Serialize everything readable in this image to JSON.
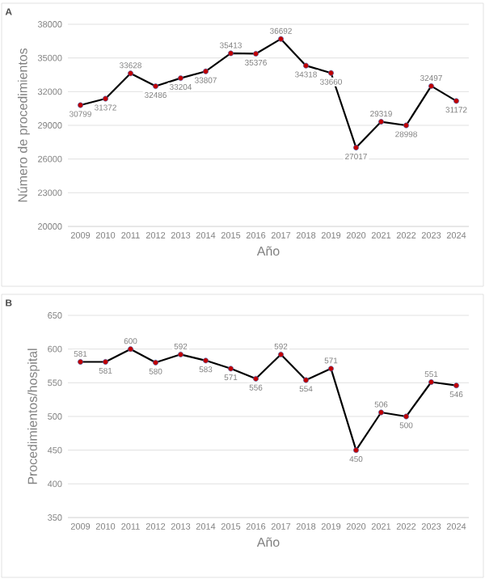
{
  "chart_data": [
    {
      "type": "line",
      "title": "A",
      "xlabel": "Año",
      "ylabel": "Número de procedimientos",
      "categories": [
        "2009",
        "2010",
        "2011",
        "2012",
        "2013",
        "2014",
        "2015",
        "2016",
        "2017",
        "2018",
        "2019",
        "2020",
        "2021",
        "2022",
        "2023",
        "2024"
      ],
      "series": [
        {
          "color": "#000000",
          "values": [
            30799,
            31372,
            33628,
            32486,
            33204,
            33807,
            35413,
            35376,
            36692,
            34318,
            33660,
            27017,
            29319,
            28998,
            32497,
            31172
          ]
        }
      ],
      "ylim": [
        20000,
        38000
      ],
      "yticks": [
        20000,
        23000,
        26000,
        29000,
        32000,
        35000,
        38000
      ],
      "grid": "y",
      "marker": "circle",
      "line_style": "solid",
      "data_labels": true
    },
    {
      "type": "line",
      "title": "B",
      "xlabel": "Año",
      "ylabel": "Procedimientos/hospital",
      "categories": [
        "2009",
        "2010",
        "2011",
        "2012",
        "2013",
        "2014",
        "2015",
        "2016",
        "2017",
        "2018",
        "2019",
        "2020",
        "2021",
        "2022",
        "2023",
        "2024"
      ],
      "series": [
        {
          "color": "#000000",
          "values": [
            581,
            581,
            600,
            580,
            592,
            583,
            571,
            556,
            592,
            554,
            571,
            450,
            506,
            500,
            551,
            546
          ]
        }
      ],
      "ylim": [
        350,
        650
      ],
      "yticks": [
        350,
        400,
        450,
        500,
        550,
        600,
        650
      ],
      "grid": "y",
      "marker": "circle",
      "line_style": "solid",
      "data_labels": true
    }
  ]
}
